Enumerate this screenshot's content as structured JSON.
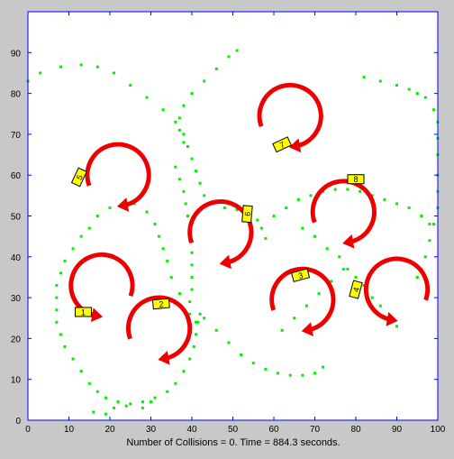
{
  "chart_data": {
    "type": "scatter",
    "title": "",
    "xlabel": "Number of Collisions = 0. Time = 884.3 seconds.",
    "ylabel": "",
    "xlim": [
      0,
      100
    ],
    "ylim": [
      0,
      100
    ],
    "xticks": [
      "0",
      "10",
      "20",
      "30",
      "40",
      "50",
      "60",
      "70",
      "80",
      "90",
      "100"
    ],
    "yticks": [
      "0",
      "10",
      "20",
      "30",
      "40",
      "50",
      "60",
      "70",
      "80",
      "90"
    ],
    "grid": false,
    "colors": {
      "trail": "#00ee00",
      "arrow": "#ee0000",
      "robot": "#ffff00",
      "axes_bg": "#ffffff",
      "figure_bg": "#c8c8c8"
    },
    "trail_points": [
      [
        0,
        83
      ],
      [
        3,
        85
      ],
      [
        8,
        86.5
      ],
      [
        13,
        87
      ],
      [
        17,
        86.5
      ],
      [
        21,
        85
      ],
      [
        25,
        82
      ],
      [
        29,
        79
      ],
      [
        33,
        76
      ],
      [
        36,
        73
      ],
      [
        38,
        70
      ],
      [
        39,
        67
      ],
      [
        40,
        64
      ],
      [
        41,
        61
      ],
      [
        42,
        58
      ],
      [
        43,
        55
      ],
      [
        45,
        53
      ],
      [
        48,
        52
      ],
      [
        51,
        51.5
      ],
      [
        54,
        50.5
      ],
      [
        56,
        49
      ],
      [
        57,
        47
      ],
      [
        58,
        44.5
      ],
      [
        36,
        62
      ],
      [
        37,
        59
      ],
      [
        38,
        56
      ],
      [
        38.5,
        53
      ],
      [
        39,
        50
      ],
      [
        39.5,
        47
      ],
      [
        39.5,
        44
      ],
      [
        40,
        41
      ],
      [
        40,
        38
      ],
      [
        40,
        35
      ],
      [
        40,
        32
      ],
      [
        39.5,
        29
      ],
      [
        39.5,
        26
      ],
      [
        41,
        24
      ],
      [
        38,
        68
      ],
      [
        37,
        71
      ],
      [
        37,
        74
      ],
      [
        38,
        77
      ],
      [
        40,
        80
      ],
      [
        43,
        83
      ],
      [
        46,
        86
      ],
      [
        49,
        89
      ],
      [
        51,
        90.5
      ],
      [
        13,
        45
      ],
      [
        11,
        42
      ],
      [
        9,
        39
      ],
      [
        8,
        36
      ],
      [
        7,
        33
      ],
      [
        7,
        30
      ],
      [
        7,
        27
      ],
      [
        7,
        24
      ],
      [
        8,
        21
      ],
      [
        9,
        18
      ],
      [
        11,
        15
      ],
      [
        13,
        12
      ],
      [
        15,
        9
      ],
      [
        17,
        7
      ],
      [
        19,
        5.5
      ],
      [
        22,
        4.5
      ],
      [
        25,
        4
      ],
      [
        28,
        4.5
      ],
      [
        31,
        5.5
      ],
      [
        34,
        7
      ],
      [
        36,
        9
      ],
      [
        38,
        12
      ],
      [
        39.5,
        15
      ],
      [
        40.5,
        18
      ],
      [
        41,
        21
      ],
      [
        41.5,
        24
      ],
      [
        42,
        26
      ],
      [
        16,
        2
      ],
      [
        19,
        1.5
      ],
      [
        21,
        3
      ],
      [
        24,
        3.5
      ],
      [
        28,
        3
      ],
      [
        30,
        4.5
      ],
      [
        15,
        47
      ],
      [
        17,
        50
      ],
      [
        20,
        52
      ],
      [
        23,
        53
      ],
      [
        26,
        53
      ],
      [
        29,
        51
      ],
      [
        31,
        48
      ],
      [
        32,
        45
      ],
      [
        33,
        42
      ],
      [
        34,
        39
      ],
      [
        35,
        35
      ],
      [
        37,
        31
      ],
      [
        43,
        25
      ],
      [
        46,
        22
      ],
      [
        49,
        19
      ],
      [
        52,
        16
      ],
      [
        55,
        14
      ],
      [
        58,
        12.5
      ],
      [
        61,
        11.5
      ],
      [
        64,
        11
      ],
      [
        67,
        11
      ],
      [
        70,
        11.5
      ],
      [
        72,
        13
      ],
      [
        60,
        50
      ],
      [
        63,
        52
      ],
      [
        66,
        54
      ],
      [
        69,
        55
      ],
      [
        72,
        56
      ],
      [
        75,
        56.5
      ],
      [
        78,
        56.5
      ],
      [
        81,
        56
      ],
      [
        84,
        55
      ],
      [
        87,
        54
      ],
      [
        90,
        53
      ],
      [
        93,
        52
      ],
      [
        96,
        50
      ],
      [
        98,
        48
      ],
      [
        67,
        47
      ],
      [
        70,
        45
      ],
      [
        73,
        42
      ],
      [
        76,
        40
      ],
      [
        78,
        37
      ],
      [
        80,
        35
      ],
      [
        82,
        33
      ],
      [
        84,
        30
      ],
      [
        86,
        28
      ],
      [
        88,
        25
      ],
      [
        90,
        23
      ],
      [
        82,
        84
      ],
      [
        86,
        83
      ],
      [
        90,
        82
      ],
      [
        93,
        81
      ],
      [
        95,
        80
      ],
      [
        97,
        79
      ],
      [
        99,
        76
      ],
      [
        100,
        73
      ],
      [
        100,
        69
      ],
      [
        100,
        65
      ],
      [
        100,
        60
      ],
      [
        100,
        56
      ],
      [
        100,
        52
      ],
      [
        99,
        48
      ],
      [
        98,
        44
      ],
      [
        97,
        40
      ],
      [
        96,
        37
      ],
      [
        95,
        35
      ],
      [
        62,
        22
      ],
      [
        65,
        25
      ],
      [
        68,
        28
      ],
      [
        71,
        31
      ],
      [
        74,
        34
      ],
      [
        77,
        37
      ]
    ],
    "robots": [
      {
        "label": "1",
        "x": 13.5,
        "y": 26.5,
        "angle": 0
      },
      {
        "label": "2",
        "x": 32.5,
        "y": 28.5,
        "angle": -5
      },
      {
        "label": "3",
        "x": 66.5,
        "y": 35.5,
        "angle": -15
      },
      {
        "label": "4",
        "x": 80,
        "y": 32,
        "angle": -75
      },
      {
        "label": "5",
        "x": 12.5,
        "y": 59.5,
        "angle": -65
      },
      {
        "label": "6",
        "x": 53.5,
        "y": 50.5,
        "angle": -85
      },
      {
        "label": "7",
        "x": 62,
        "y": 67.5,
        "angle": -25
      },
      {
        "label": "8",
        "x": 80,
        "y": 59,
        "angle": 0
      }
    ],
    "turn_arrows": [
      {
        "cx": 18,
        "cy": 33,
        "r": 7.5,
        "direction": "ccw"
      },
      {
        "cx": 32,
        "cy": 22.5,
        "r": 7.5,
        "direction": "cw"
      },
      {
        "cx": 22,
        "cy": 60,
        "r": 7.5,
        "direction": "cw"
      },
      {
        "cx": 47,
        "cy": 46,
        "r": 7.5,
        "direction": "cw"
      },
      {
        "cx": 64,
        "cy": 74.5,
        "r": 7.5,
        "direction": "cw"
      },
      {
        "cx": 67,
        "cy": 29.5,
        "r": 7.5,
        "direction": "cw"
      },
      {
        "cx": 77,
        "cy": 51,
        "r": 7.5,
        "direction": "cw"
      },
      {
        "cx": 90,
        "cy": 32,
        "r": 7.5,
        "direction": "ccw"
      }
    ]
  }
}
